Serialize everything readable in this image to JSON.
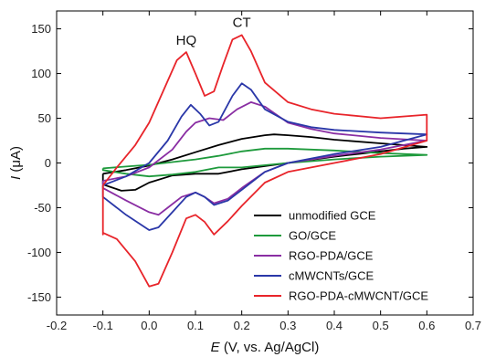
{
  "chart_data": {
    "type": "line",
    "xlabel_symbol": "E",
    "xlabel_rest": " (V, vs. Ag/AgCl)",
    "ylabel_symbol": "I",
    "ylabel_rest": " (μA)",
    "xlim": [
      -0.2,
      0.7
    ],
    "ylim": [
      -170,
      170
    ],
    "x_ticks": [
      -0.2,
      -0.1,
      0.0,
      0.1,
      0.2,
      0.3,
      0.4,
      0.5,
      0.6,
      0.7
    ],
    "x_tick_labels": [
      "-0.2",
      "-0.1",
      "0.0",
      "0.1",
      "0.2",
      "0.3",
      "0.4",
      "0.5",
      "0.6",
      "0.7"
    ],
    "y_ticks": [
      -150,
      -100,
      -50,
      0,
      50,
      100,
      150
    ],
    "y_tick_labels": [
      "-150",
      "-100",
      "-50",
      "0",
      "50",
      "100",
      "150"
    ],
    "grid": false,
    "legend_position": "bottom-right",
    "annotations": [
      {
        "text": "HQ",
        "x": 0.08,
        "y": 132
      },
      {
        "text": "CT",
        "x": 0.2,
        "y": 152
      }
    ],
    "series": [
      {
        "name": "unmodified GCE",
        "color": "#000000",
        "x": [
          -0.1,
          -0.05,
          0.0,
          0.05,
          0.1,
          0.15,
          0.2,
          0.25,
          0.27,
          0.3,
          0.35,
          0.4,
          0.5,
          0.6,
          0.6,
          0.55,
          0.5,
          0.45,
          0.4,
          0.3,
          0.2,
          0.15,
          0.1,
          0.05,
          0.0,
          -0.03,
          -0.06,
          -0.1,
          -0.1
        ],
        "y": [
          -12,
          -8,
          -3,
          4,
          12,
          20,
          27,
          31,
          32,
          31,
          29,
          26,
          22,
          18,
          18,
          16,
          13,
          10,
          7,
          0,
          -7,
          -12,
          -12,
          -14,
          -22,
          -30,
          -31,
          -24,
          -12
        ]
      },
      {
        "name": "GO/GCE",
        "color": "#1e9a3c",
        "x": [
          -0.1,
          -0.05,
          0.0,
          0.05,
          0.1,
          0.15,
          0.2,
          0.25,
          0.3,
          0.4,
          0.5,
          0.6,
          0.6,
          0.5,
          0.4,
          0.3,
          0.2,
          0.15,
          0.1,
          0.05,
          0.0,
          -0.05,
          -0.1,
          -0.1
        ],
        "y": [
          -6,
          -4,
          -2,
          1,
          4,
          8,
          13,
          16,
          16,
          14,
          11,
          9,
          9,
          7,
          4,
          0,
          -5,
          -5,
          -10,
          -13,
          -15,
          -12,
          -8,
          -6
        ]
      },
      {
        "name": "RGO-PDA/GCE",
        "color": "#8a2ea3",
        "x": [
          -0.1,
          -0.05,
          0.0,
          0.05,
          0.08,
          0.1,
          0.13,
          0.16,
          0.19,
          0.22,
          0.25,
          0.3,
          0.35,
          0.4,
          0.5,
          0.6,
          0.6,
          0.5,
          0.4,
          0.3,
          0.25,
          0.2,
          0.17,
          0.14,
          0.12,
          0.1,
          0.07,
          0.04,
          0.02,
          0.0,
          -0.05,
          -0.1,
          -0.1
        ],
        "y": [
          -20,
          -15,
          -5,
          15,
          35,
          45,
          50,
          48,
          60,
          68,
          63,
          45,
          38,
          33,
          28,
          25,
          25,
          15,
          8,
          0,
          -10,
          -28,
          -40,
          -45,
          -38,
          -33,
          -38,
          -50,
          -58,
          -55,
          -42,
          -28,
          -20
        ]
      },
      {
        "name": "cMWCNTs/GCE",
        "color": "#2a37a8",
        "x": [
          -0.1,
          -0.05,
          0.0,
          0.04,
          0.07,
          0.09,
          0.11,
          0.13,
          0.15,
          0.18,
          0.2,
          0.22,
          0.25,
          0.3,
          0.35,
          0.4,
          0.5,
          0.6,
          0.6,
          0.5,
          0.4,
          0.3,
          0.25,
          0.2,
          0.17,
          0.14,
          0.12,
          0.1,
          0.08,
          0.05,
          0.02,
          0.0,
          -0.05,
          -0.1,
          -0.1
        ],
        "y": [
          -25,
          -15,
          0,
          25,
          52,
          65,
          55,
          42,
          46,
          75,
          89,
          82,
          60,
          46,
          40,
          37,
          34,
          32,
          32,
          18,
          10,
          0,
          -10,
          -30,
          -42,
          -47,
          -38,
          -33,
          -38,
          -55,
          -72,
          -75,
          -58,
          -38,
          -25
        ]
      },
      {
        "name": "RGO-PDA-cMWCNT/GCE",
        "color": "#e8242a",
        "x": [
          -0.1,
          -0.07,
          -0.03,
          0.0,
          0.03,
          0.06,
          0.08,
          0.1,
          0.12,
          0.14,
          0.16,
          0.18,
          0.2,
          0.22,
          0.25,
          0.3,
          0.35,
          0.4,
          0.5,
          0.6,
          0.6,
          0.5,
          0.4,
          0.3,
          0.25,
          0.2,
          0.17,
          0.14,
          0.12,
          0.1,
          0.08,
          0.05,
          0.02,
          0.0,
          -0.03,
          -0.07,
          -0.1,
          -0.1,
          -0.1
        ],
        "y": [
          -25,
          -5,
          20,
          45,
          80,
          115,
          124,
          100,
          75,
          80,
          110,
          138,
          143,
          125,
          90,
          68,
          60,
          55,
          50,
          54,
          25,
          10,
          0,
          -10,
          -22,
          -48,
          -65,
          -80,
          -66,
          -58,
          -62,
          -100,
          -135,
          -138,
          -110,
          -85,
          -78,
          -80,
          -25
        ]
      }
    ]
  }
}
